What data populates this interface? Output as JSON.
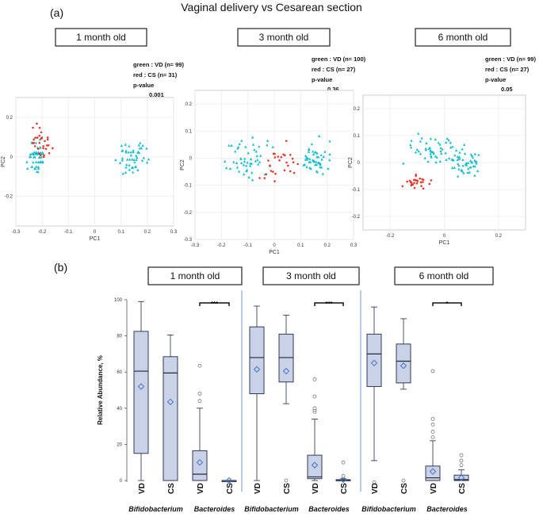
{
  "figure_title": "Vaginal delivery vs Cesarean section",
  "panel_a_label": "(a)",
  "panel_b_label": "(b)",
  "colors": {
    "vd": "#17becf",
    "cs": "#e8372c",
    "box_fill": "#c9d2e6",
    "box_edge": "#1f2a44",
    "mean": "#4472c4",
    "divider": "#8ea6d8"
  },
  "chart_data": [
    {
      "type": "scatter",
      "panel": "a1",
      "title": "1 month old",
      "xlabel": "PC1",
      "ylabel": "PC2",
      "xticks": [
        "-0.3",
        "-0.2",
        "-0.1",
        "0",
        "0.1",
        "0.2",
        "0.3"
      ],
      "yticks": [
        "0.2",
        "0",
        "-0.2"
      ],
      "xlim": [
        -0.3,
        0.3
      ],
      "ylim": [
        -0.35,
        0.3
      ],
      "legend": [
        "green : VD (n= 99)",
        "red : CS (n= 31)"
      ],
      "pvalue_label": "p-value",
      "pvalue": "0.001",
      "vd_n": 99,
      "cs_n": 31
    },
    {
      "type": "scatter",
      "panel": "a2",
      "title": "3 month old",
      "xlabel": "PC1",
      "ylabel": "PC2",
      "xticks": [
        "-0.3",
        "-0.2",
        "-0.1",
        "0",
        "0.1",
        "0.2",
        "0.3"
      ],
      "yticks": [
        "0.2",
        "0.1",
        "0",
        "-0.1",
        "-0.2",
        "-0.3"
      ],
      "xlim": [
        -0.3,
        0.3
      ],
      "ylim": [
        -0.3,
        0.25
      ],
      "legend": [
        "green : VD (n= 100)",
        "red : CS (n= 27)"
      ],
      "pvalue_label": "p-value",
      "pvalue": "0.36",
      "vd_n": 100,
      "cs_n": 27
    },
    {
      "type": "scatter",
      "panel": "a3",
      "title": "6 month old",
      "xlabel": "PC1",
      "ylabel": "PC2",
      "xticks": [
        "-0.2",
        "0",
        "0.2"
      ],
      "yticks": [
        "0.2",
        "0.1",
        "0",
        "-0.1",
        "-0.2"
      ],
      "xlim": [
        -0.3,
        0.3
      ],
      "ylim": [
        -0.25,
        0.25
      ],
      "legend": [
        "green : VD (n= 99)",
        "red : CS (n= 27)"
      ],
      "pvalue_label": "p-value",
      "pvalue": "0.05",
      "vd_n": 99,
      "cs_n": 27
    },
    {
      "type": "box",
      "panel": "b",
      "ylabel": "Relative Abundance, %",
      "ylim": [
        0,
        100
      ],
      "yticks": [
        "0",
        "20",
        "40",
        "60",
        "80",
        "100"
      ],
      "genera": [
        "Bifidobacterium",
        "Bacteroides"
      ],
      "groups": [
        {
          "title": "1 month old",
          "significance": "***",
          "boxes": [
            {
              "genus": "Bifidobacterium",
              "group": "VD",
              "min": 0,
              "q1": 15,
              "median": 60.5,
              "q3": 82.5,
              "max": 99,
              "mean": 52,
              "outliers": []
            },
            {
              "genus": "Bifidobacterium",
              "group": "CS",
              "min": 0,
              "q1": 0,
              "median": 59.5,
              "q3": 68.5,
              "max": 80.5,
              "mean": 43.5,
              "outliers": []
            },
            {
              "genus": "Bacteroides",
              "group": "VD",
              "min": 0,
              "q1": 0,
              "median": 3.5,
              "q3": 16.5,
              "max": 40,
              "mean": 10,
              "outliers": [
                44,
                48,
                63.5
              ]
            },
            {
              "genus": "Bacteroides",
              "group": "CS",
              "min": 0,
              "q1": 0,
              "median": 0,
              "q3": 0,
              "max": 0,
              "mean": 0,
              "outliers": []
            }
          ]
        },
        {
          "title": "3 month old",
          "significance": "***",
          "boxes": [
            {
              "genus": "Bifidobacterium",
              "group": "VD",
              "min": 0,
              "q1": 48,
              "median": 68,
              "q3": 85,
              "max": 96.5,
              "mean": 61.5,
              "outliers": []
            },
            {
              "genus": "Bifidobacterium",
              "group": "CS",
              "min": 42.5,
              "q1": 54.5,
              "median": 68,
              "q3": 81,
              "max": 91.5,
              "mean": 60.5,
              "outliers": [
                0
              ]
            },
            {
              "genus": "Bacteroides",
              "group": "VD",
              "min": 0,
              "q1": 1,
              "median": 2,
              "q3": 14,
              "max": 34,
              "mean": 8.5,
              "outliers": [
                38,
                39,
                40,
                46.5,
                56
              ]
            },
            {
              "genus": "Bacteroides",
              "group": "CS",
              "min": 0,
              "q1": 0,
              "median": 0,
              "q3": 0.5,
              "max": 1,
              "mean": 0.5,
              "outliers": [
                2.5,
                10
              ]
            }
          ]
        },
        {
          "title": "6 month old",
          "significance": "*",
          "boxes": [
            {
              "genus": "Bifidobacterium",
              "group": "VD",
              "min": 11,
              "q1": 52,
              "median": 70,
              "q3": 81,
              "max": 96,
              "mean": 65,
              "outliers": [
                -1
              ]
            },
            {
              "genus": "Bifidobacterium",
              "group": "CS",
              "min": 50.5,
              "q1": 54,
              "median": 66,
              "q3": 75.5,
              "max": 89.5,
              "mean": 63.5,
              "outliers": [
                0
              ]
            },
            {
              "genus": "Bacteroides",
              "group": "VD",
              "min": 0,
              "q1": 0,
              "median": 1.5,
              "q3": 8,
              "max": 22,
              "mean": 5,
              "outliers": [
                24,
                27,
                31,
                34,
                60.5
              ]
            },
            {
              "genus": "Bacteroides",
              "group": "CS",
              "min": 0,
              "q1": 0,
              "median": 0.5,
              "q3": 3,
              "max": 6,
              "mean": 1.5,
              "outliers": [
                8.5,
                11,
                14
              ]
            }
          ]
        }
      ]
    }
  ]
}
